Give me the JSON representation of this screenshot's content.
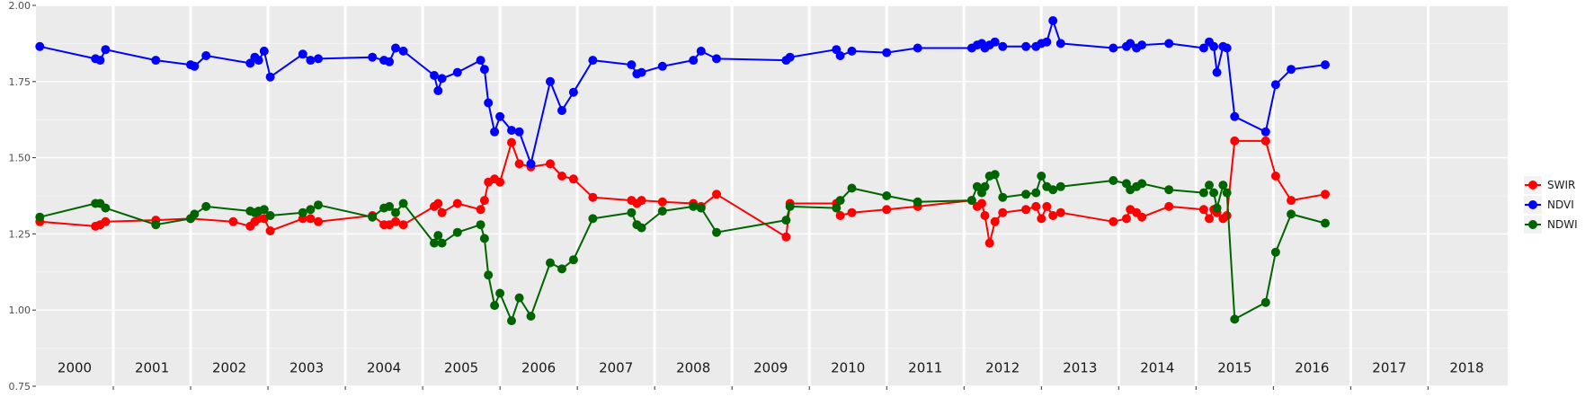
{
  "chart_data": {
    "type": "line",
    "title": "",
    "xlabel": "",
    "ylabel": "",
    "xlim": [
      1999.95,
      2018.98
    ],
    "ylim": [
      0.75,
      2.0
    ],
    "y_ticks": [
      "0.75",
      "1.00",
      "1.25",
      "1.50",
      "1.75",
      "2.00"
    ],
    "y_tick_values": [
      0.75,
      1.0,
      1.25,
      1.5,
      1.75,
      2.0
    ],
    "year_labels": [
      "2000",
      "2001",
      "2002",
      "2003",
      "2004",
      "2005",
      "2006",
      "2007",
      "2008",
      "2009",
      "2010",
      "2011",
      "2012",
      "2013",
      "2014",
      "2015",
      "2016",
      "2017",
      "2018"
    ],
    "grid": true,
    "legend_position": "right",
    "series": [
      {
        "name": "SWIR",
        "color": "#ff0000",
        "points": [
          [
            2000.0,
            1.29
          ],
          [
            2000.72,
            1.275
          ],
          [
            2000.78,
            1.28
          ],
          [
            2000.85,
            1.29
          ],
          [
            2001.5,
            1.295
          ],
          [
            2001.95,
            1.3
          ],
          [
            2002.5,
            1.29
          ],
          [
            2002.72,
            1.275
          ],
          [
            2002.78,
            1.29
          ],
          [
            2002.83,
            1.3
          ],
          [
            2002.9,
            1.3
          ],
          [
            2002.98,
            1.26
          ],
          [
            2003.4,
            1.3
          ],
          [
            2003.5,
            1.3
          ],
          [
            2003.6,
            1.29
          ],
          [
            2004.3,
            1.31
          ],
          [
            2004.45,
            1.28
          ],
          [
            2004.52,
            1.28
          ],
          [
            2004.6,
            1.29
          ],
          [
            2004.7,
            1.28
          ],
          [
            2005.1,
            1.34
          ],
          [
            2005.15,
            1.35
          ],
          [
            2005.2,
            1.32
          ],
          [
            2005.4,
            1.35
          ],
          [
            2005.7,
            1.33
          ],
          [
            2005.75,
            1.36
          ],
          [
            2005.8,
            1.42
          ],
          [
            2005.88,
            1.43
          ],
          [
            2005.95,
            1.42
          ],
          [
            2006.1,
            1.55
          ],
          [
            2006.2,
            1.48
          ],
          [
            2006.35,
            1.47
          ],
          [
            2006.6,
            1.48
          ],
          [
            2006.75,
            1.44
          ],
          [
            2006.9,
            1.43
          ],
          [
            2007.15,
            1.37
          ],
          [
            2007.65,
            1.36
          ],
          [
            2007.72,
            1.35
          ],
          [
            2007.78,
            1.36
          ],
          [
            2008.05,
            1.355
          ],
          [
            2008.45,
            1.35
          ],
          [
            2008.55,
            1.34
          ],
          [
            2008.75,
            1.38
          ],
          [
            2009.65,
            1.24
          ],
          [
            2009.7,
            1.35
          ],
          [
            2010.3,
            1.35
          ],
          [
            2010.35,
            1.31
          ],
          [
            2010.5,
            1.32
          ],
          [
            2010.95,
            1.33
          ],
          [
            2011.35,
            1.34
          ],
          [
            2012.05,
            1.36
          ],
          [
            2012.12,
            1.34
          ],
          [
            2012.18,
            1.35
          ],
          [
            2012.22,
            1.31
          ],
          [
            2012.28,
            1.22
          ],
          [
            2012.35,
            1.29
          ],
          [
            2012.45,
            1.32
          ],
          [
            2012.75,
            1.33
          ],
          [
            2012.88,
            1.34
          ],
          [
            2012.95,
            1.3
          ],
          [
            2013.02,
            1.34
          ],
          [
            2013.1,
            1.31
          ],
          [
            2013.2,
            1.32
          ],
          [
            2013.88,
            1.29
          ],
          [
            2014.05,
            1.3
          ],
          [
            2014.1,
            1.33
          ],
          [
            2014.18,
            1.32
          ],
          [
            2014.25,
            1.305
          ],
          [
            2014.6,
            1.34
          ],
          [
            2015.05,
            1.33
          ],
          [
            2015.12,
            1.3
          ],
          [
            2015.18,
            1.33
          ],
          [
            2015.22,
            1.32
          ],
          [
            2015.3,
            1.3
          ],
          [
            2015.35,
            1.31
          ],
          [
            2015.45,
            1.555
          ],
          [
            2015.85,
            1.555
          ],
          [
            2015.98,
            1.44
          ],
          [
            2016.18,
            1.36
          ],
          [
            2016.62,
            1.38
          ]
        ]
      },
      {
        "name": "NDVI",
        "color": "#0000ff",
        "points": [
          [
            2000.0,
            1.865
          ],
          [
            2000.72,
            1.825
          ],
          [
            2000.78,
            1.82
          ],
          [
            2000.85,
            1.855
          ],
          [
            2001.5,
            1.82
          ],
          [
            2001.95,
            1.805
          ],
          [
            2002.0,
            1.8
          ],
          [
            2002.15,
            1.835
          ],
          [
            2002.72,
            1.81
          ],
          [
            2002.78,
            1.83
          ],
          [
            2002.83,
            1.82
          ],
          [
            2002.9,
            1.85
          ],
          [
            2002.98,
            1.765
          ],
          [
            2003.4,
            1.84
          ],
          [
            2003.5,
            1.82
          ],
          [
            2003.6,
            1.825
          ],
          [
            2004.3,
            1.83
          ],
          [
            2004.45,
            1.82
          ],
          [
            2004.52,
            1.815
          ],
          [
            2004.6,
            1.86
          ],
          [
            2004.7,
            1.85
          ],
          [
            2005.1,
            1.77
          ],
          [
            2005.15,
            1.72
          ],
          [
            2005.2,
            1.76
          ],
          [
            2005.4,
            1.78
          ],
          [
            2005.7,
            1.82
          ],
          [
            2005.75,
            1.79
          ],
          [
            2005.8,
            1.68
          ],
          [
            2005.88,
            1.585
          ],
          [
            2005.95,
            1.635
          ],
          [
            2006.1,
            1.59
          ],
          [
            2006.2,
            1.585
          ],
          [
            2006.35,
            1.48
          ],
          [
            2006.6,
            1.75
          ],
          [
            2006.75,
            1.655
          ],
          [
            2006.9,
            1.715
          ],
          [
            2007.15,
            1.82
          ],
          [
            2007.65,
            1.805
          ],
          [
            2007.72,
            1.775
          ],
          [
            2007.78,
            1.78
          ],
          [
            2008.05,
            1.8
          ],
          [
            2008.45,
            1.82
          ],
          [
            2008.55,
            1.85
          ],
          [
            2008.75,
            1.825
          ],
          [
            2009.65,
            1.82
          ],
          [
            2009.7,
            1.83
          ],
          [
            2010.3,
            1.855
          ],
          [
            2010.35,
            1.835
          ],
          [
            2010.5,
            1.85
          ],
          [
            2010.95,
            1.845
          ],
          [
            2011.35,
            1.86
          ],
          [
            2012.05,
            1.86
          ],
          [
            2012.12,
            1.87
          ],
          [
            2012.18,
            1.875
          ],
          [
            2012.22,
            1.86
          ],
          [
            2012.28,
            1.87
          ],
          [
            2012.35,
            1.88
          ],
          [
            2012.45,
            1.865
          ],
          [
            2012.75,
            1.865
          ],
          [
            2012.88,
            1.865
          ],
          [
            2012.95,
            1.875
          ],
          [
            2013.02,
            1.88
          ],
          [
            2013.1,
            1.95
          ],
          [
            2013.2,
            1.875
          ],
          [
            2013.88,
            1.86
          ],
          [
            2014.05,
            1.865
          ],
          [
            2014.1,
            1.875
          ],
          [
            2014.18,
            1.86
          ],
          [
            2014.25,
            1.87
          ],
          [
            2014.6,
            1.875
          ],
          [
            2015.05,
            1.86
          ],
          [
            2015.12,
            1.88
          ],
          [
            2015.18,
            1.865
          ],
          [
            2015.22,
            1.78
          ],
          [
            2015.3,
            1.865
          ],
          [
            2015.35,
            1.86
          ],
          [
            2015.45,
            1.635
          ],
          [
            2015.85,
            1.585
          ],
          [
            2015.98,
            1.74
          ],
          [
            2016.18,
            1.79
          ],
          [
            2016.62,
            1.805
          ]
        ]
      },
      {
        "name": "NDWI",
        "color": "#006400",
        "points": [
          [
            2000.0,
            1.305
          ],
          [
            2000.72,
            1.35
          ],
          [
            2000.78,
            1.35
          ],
          [
            2000.85,
            1.335
          ],
          [
            2001.5,
            1.28
          ],
          [
            2001.95,
            1.3
          ],
          [
            2002.0,
            1.315
          ],
          [
            2002.15,
            1.34
          ],
          [
            2002.72,
            1.325
          ],
          [
            2002.78,
            1.32
          ],
          [
            2002.83,
            1.325
          ],
          [
            2002.9,
            1.33
          ],
          [
            2002.98,
            1.31
          ],
          [
            2003.4,
            1.32
          ],
          [
            2003.5,
            1.33
          ],
          [
            2003.6,
            1.345
          ],
          [
            2004.3,
            1.305
          ],
          [
            2004.45,
            1.335
          ],
          [
            2004.52,
            1.34
          ],
          [
            2004.6,
            1.32
          ],
          [
            2004.7,
            1.35
          ],
          [
            2005.1,
            1.22
          ],
          [
            2005.15,
            1.245
          ],
          [
            2005.2,
            1.22
          ],
          [
            2005.4,
            1.255
          ],
          [
            2005.7,
            1.28
          ],
          [
            2005.75,
            1.235
          ],
          [
            2005.8,
            1.115
          ],
          [
            2005.88,
            1.015
          ],
          [
            2005.95,
            1.055
          ],
          [
            2006.1,
            0.965
          ],
          [
            2006.2,
            1.04
          ],
          [
            2006.35,
            0.98
          ],
          [
            2006.6,
            1.155
          ],
          [
            2006.75,
            1.135
          ],
          [
            2006.9,
            1.165
          ],
          [
            2007.15,
            1.3
          ],
          [
            2007.65,
            1.32
          ],
          [
            2007.72,
            1.28
          ],
          [
            2007.78,
            1.27
          ],
          [
            2008.05,
            1.325
          ],
          [
            2008.45,
            1.34
          ],
          [
            2008.55,
            1.335
          ],
          [
            2008.75,
            1.255
          ],
          [
            2009.65,
            1.295
          ],
          [
            2009.7,
            1.34
          ],
          [
            2010.3,
            1.335
          ],
          [
            2010.35,
            1.36
          ],
          [
            2010.5,
            1.4
          ],
          [
            2010.95,
            1.375
          ],
          [
            2011.35,
            1.355
          ],
          [
            2012.05,
            1.36
          ],
          [
            2012.12,
            1.405
          ],
          [
            2012.18,
            1.385
          ],
          [
            2012.22,
            1.405
          ],
          [
            2012.28,
            1.44
          ],
          [
            2012.35,
            1.445
          ],
          [
            2012.45,
            1.37
          ],
          [
            2012.75,
            1.38
          ],
          [
            2012.88,
            1.385
          ],
          [
            2012.95,
            1.44
          ],
          [
            2013.02,
            1.405
          ],
          [
            2013.1,
            1.395
          ],
          [
            2013.2,
            1.405
          ],
          [
            2013.88,
            1.425
          ],
          [
            2014.05,
            1.415
          ],
          [
            2014.1,
            1.395
          ],
          [
            2014.18,
            1.405
          ],
          [
            2014.25,
            1.415
          ],
          [
            2014.6,
            1.395
          ],
          [
            2015.05,
            1.385
          ],
          [
            2015.12,
            1.41
          ],
          [
            2015.18,
            1.385
          ],
          [
            2015.22,
            1.335
          ],
          [
            2015.3,
            1.41
          ],
          [
            2015.35,
            1.385
          ],
          [
            2015.45,
            0.97
          ],
          [
            2015.85,
            1.025
          ],
          [
            2015.98,
            1.19
          ],
          [
            2016.18,
            1.315
          ],
          [
            2016.62,
            1.285
          ]
        ]
      }
    ]
  }
}
